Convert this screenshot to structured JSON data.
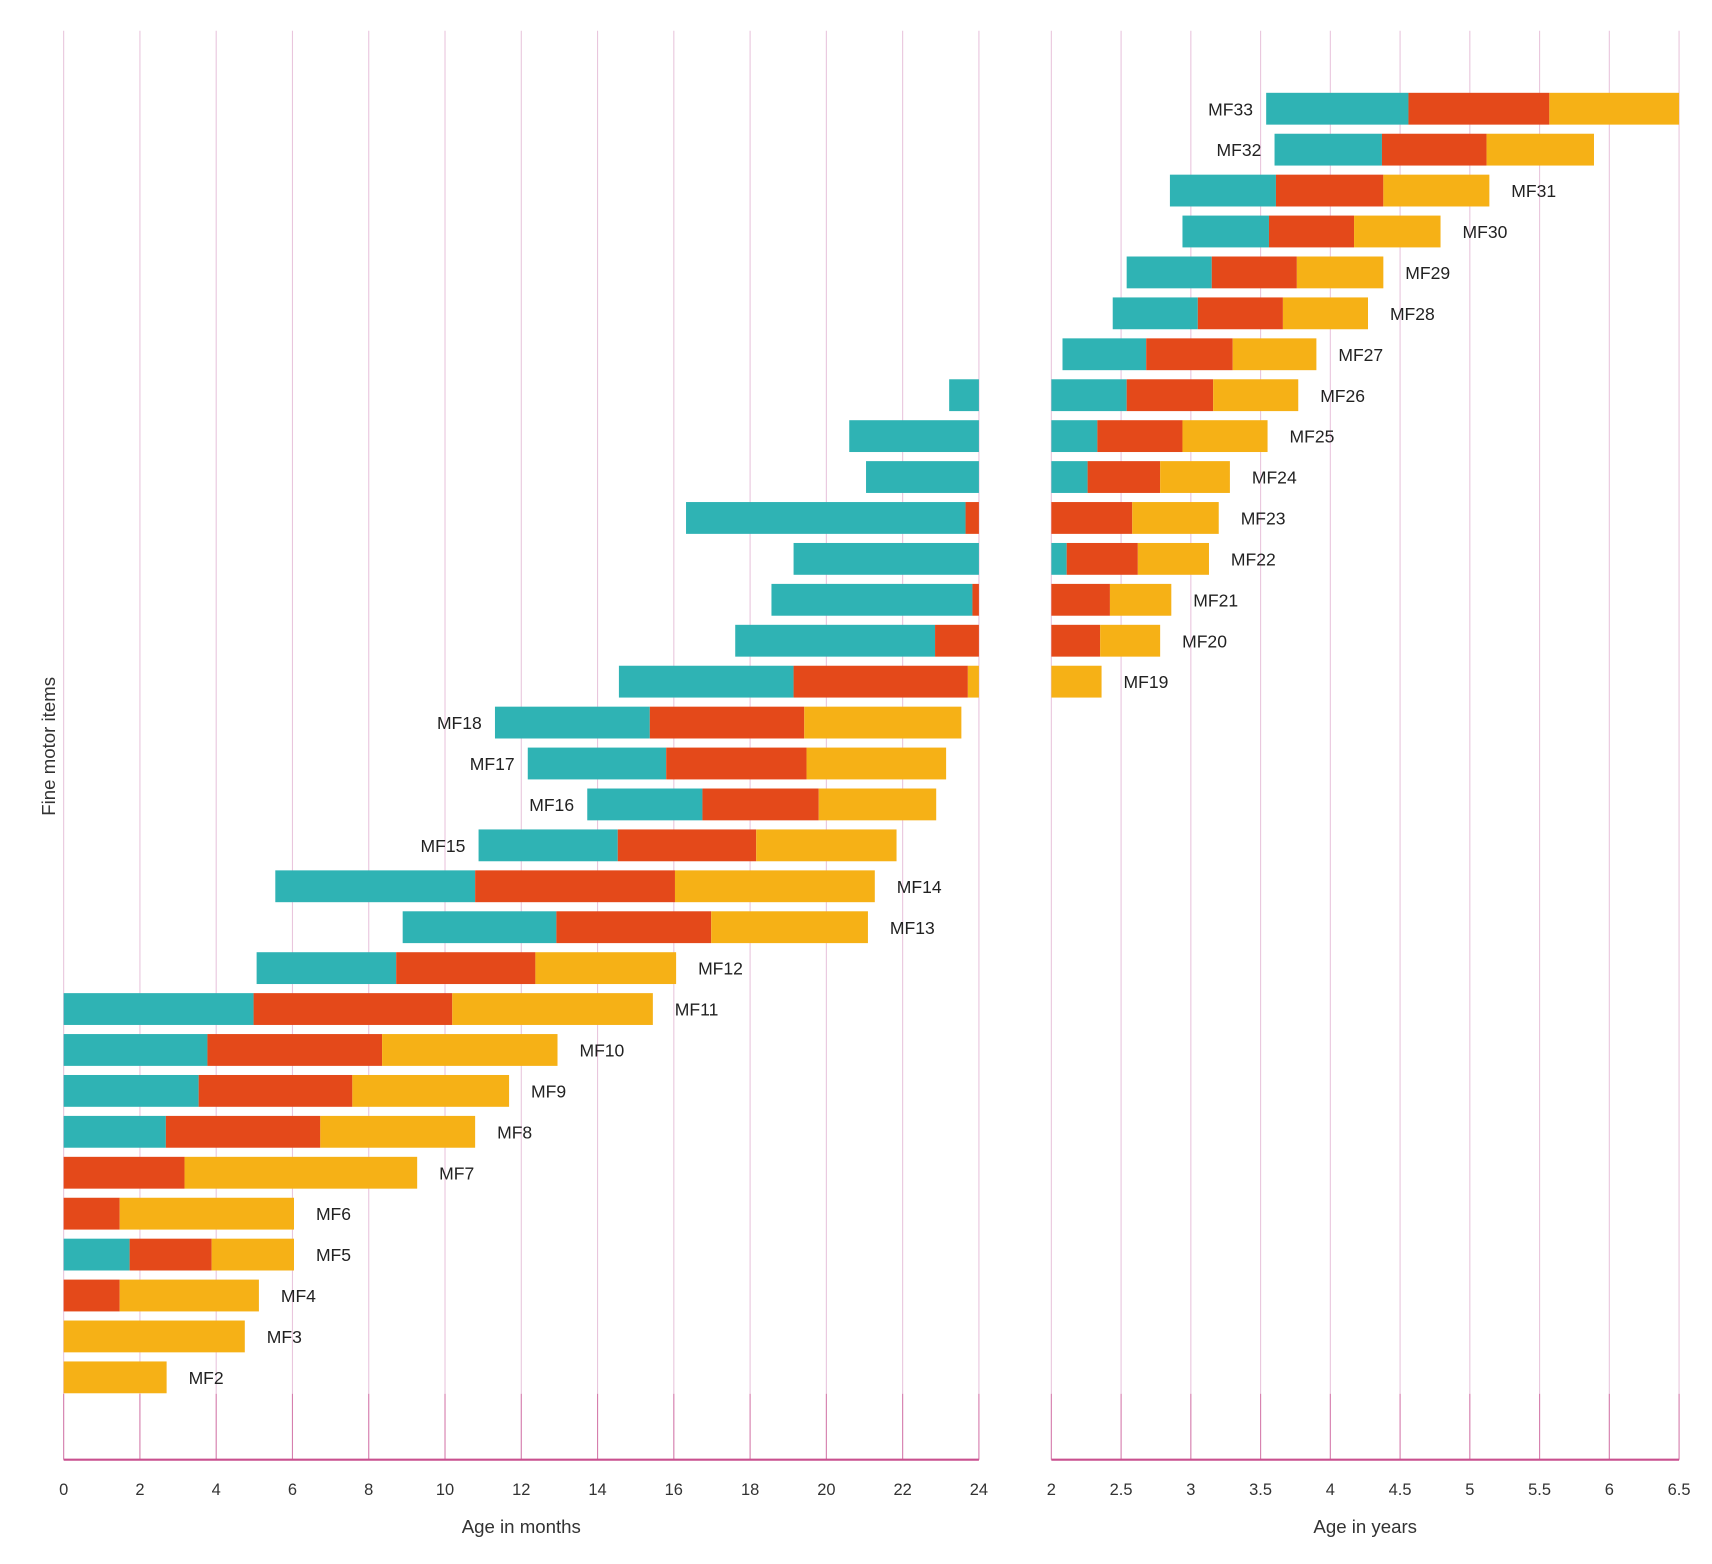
{
  "chart_data": {
    "type": "bar",
    "subtype": "horizontal-stacked-range",
    "ylabel": "Fine motor items",
    "legend": "none",
    "colors": {
      "phase1": "#2fb3b4",
      "phase2": "#e4491a",
      "phase3": "#f6b116",
      "grid": "#e9c6dd",
      "axis": "#c9508f"
    },
    "panels": [
      {
        "key": "months",
        "xlabel": "Age in months",
        "xlim": [
          0,
          24
        ],
        "ticks": [
          "0",
          "2",
          "4",
          "6",
          "8",
          "10",
          "12",
          "14",
          "16",
          "18",
          "20",
          "22",
          "24"
        ],
        "tick_values": [
          0,
          2,
          4,
          6,
          8,
          10,
          12,
          14,
          16,
          18,
          20,
          22,
          24
        ]
      },
      {
        "key": "years",
        "xlabel": "Age in years",
        "xlim": [
          2,
          6.5
        ],
        "ticks": [
          "2",
          "2.5",
          "3",
          "3.5",
          "4",
          "4.5",
          "5",
          "5.5",
          "6",
          "6.5"
        ],
        "tick_values": [
          2,
          2.5,
          3,
          3.5,
          4,
          4.5,
          5,
          5.5,
          6,
          6.5
        ]
      }
    ],
    "items": [
      {
        "name": "MF2",
        "months": {
          "phase3": [
            0,
            2.7
          ]
        }
      },
      {
        "name": "MF3",
        "months": {
          "phase3": [
            0,
            4.75
          ]
        }
      },
      {
        "name": "MF4",
        "months": {
          "phase2": [
            0,
            1.47
          ],
          "phase3": [
            1.47,
            5.12
          ]
        }
      },
      {
        "name": "MF5",
        "months": {
          "phase1": [
            0,
            1.73
          ],
          "phase2": [
            1.73,
            3.88
          ],
          "phase3": [
            3.88,
            6.04
          ]
        }
      },
      {
        "name": "MF6",
        "months": {
          "phase2": [
            0,
            1.47
          ],
          "phase3": [
            1.47,
            6.04
          ]
        }
      },
      {
        "name": "MF7",
        "months": {
          "phase2": [
            0,
            3.17
          ],
          "phase3": [
            3.17,
            9.27
          ]
        }
      },
      {
        "name": "MF8",
        "months": {
          "phase1": [
            0,
            2.68
          ],
          "phase2": [
            2.68,
            6.73
          ],
          "phase3": [
            6.73,
            10.79
          ]
        }
      },
      {
        "name": "MF9",
        "months": {
          "phase1": [
            0,
            3.54
          ],
          "phase2": [
            3.54,
            7.57
          ],
          "phase3": [
            7.57,
            11.68
          ]
        }
      },
      {
        "name": "MF10",
        "months": {
          "phase1": [
            0,
            3.77
          ],
          "phase2": [
            3.77,
            8.35
          ],
          "phase3": [
            8.35,
            12.95
          ]
        }
      },
      {
        "name": "MF11",
        "months": {
          "phase1": [
            0,
            4.98
          ],
          "phase2": [
            4.98,
            10.19
          ],
          "phase3": [
            10.19,
            15.45
          ]
        }
      },
      {
        "name": "MF12",
        "months": {
          "phase1": [
            5.06,
            8.72
          ],
          "phase2": [
            8.72,
            12.37
          ],
          "phase3": [
            12.37,
            16.06
          ]
        }
      },
      {
        "name": "MF13",
        "months": {
          "phase1": [
            8.89,
            12.92
          ],
          "phase2": [
            12.92,
            16.98
          ],
          "phase3": [
            16.98,
            21.09
          ]
        }
      },
      {
        "name": "MF14",
        "months": {
          "phase1": [
            5.55,
            10.79
          ],
          "phase2": [
            10.79,
            16.03
          ],
          "phase3": [
            16.03,
            21.27
          ]
        }
      },
      {
        "name": "MF15",
        "months": {
          "phase1": [
            10.88,
            14.53
          ],
          "phase2": [
            14.53,
            18.16
          ],
          "phase3": [
            18.16,
            21.84
          ]
        }
      },
      {
        "name": "MF16",
        "months": {
          "phase1": [
            13.73,
            16.75
          ],
          "phase2": [
            16.75,
            19.8
          ],
          "phase3": [
            19.8,
            22.88
          ]
        }
      },
      {
        "name": "MF17",
        "months": {
          "phase1": [
            12.17,
            15.8
          ],
          "phase2": [
            15.8,
            19.48
          ],
          "phase3": [
            19.48,
            23.14
          ]
        }
      },
      {
        "name": "MF18",
        "months": {
          "phase1": [
            11.31,
            15.37
          ],
          "phase2": [
            15.37,
            19.42
          ],
          "phase3": [
            19.42,
            23.54
          ]
        }
      },
      {
        "name": "MF19",
        "months": {
          "phase1": [
            14.56,
            19.14
          ],
          "phase2": [
            19.14,
            23.71
          ],
          "phase3": [
            23.71,
            24
          ]
        },
        "years": {
          "phase3": [
            2,
            2.36
          ]
        }
      },
      {
        "name": "MF20",
        "months": {
          "phase1": [
            17.61,
            22.85
          ],
          "phase2": [
            22.85,
            24
          ]
        },
        "years": {
          "phase2": [
            2,
            2.35
          ],
          "phase3": [
            2.35,
            2.78
          ]
        }
      },
      {
        "name": "MF21",
        "months": {
          "phase1": [
            18.56,
            23.83
          ],
          "phase2": [
            23.83,
            24
          ]
        },
        "years": {
          "phase2": [
            2,
            2.42
          ],
          "phase3": [
            2.42,
            2.86
          ]
        }
      },
      {
        "name": "MF22",
        "months": {
          "phase1": [
            19.14,
            24
          ]
        },
        "years": {
          "phase1": [
            2,
            2.11
          ],
          "phase2": [
            2.11,
            2.62
          ],
          "phase3": [
            2.62,
            3.13
          ]
        }
      },
      {
        "name": "MF23",
        "months": {
          "phase1": [
            16.32,
            23.65
          ],
          "phase2": [
            23.65,
            24
          ]
        },
        "years": {
          "phase2": [
            2,
            2.58
          ],
          "phase3": [
            2.58,
            3.2
          ]
        }
      },
      {
        "name": "MF24",
        "months": {
          "phase1": [
            21.04,
            24
          ]
        },
        "years": {
          "phase1": [
            2,
            2.26
          ],
          "phase2": [
            2.26,
            2.78
          ],
          "phase3": [
            2.78,
            3.28
          ]
        }
      },
      {
        "name": "MF25",
        "months": {
          "phase1": [
            20.6,
            24
          ]
        },
        "years": {
          "phase1": [
            2,
            2.33
          ],
          "phase2": [
            2.33,
            2.94
          ],
          "phase3": [
            2.94,
            3.55
          ]
        }
      },
      {
        "name": "MF26",
        "months": {
          "phase1": [
            23.22,
            24
          ]
        },
        "years": {
          "phase1": [
            2,
            2.54
          ],
          "phase2": [
            2.54,
            3.16
          ],
          "phase3": [
            3.16,
            3.77
          ]
        }
      },
      {
        "name": "MF27",
        "years": {
          "phase1": [
            2.08,
            2.68
          ],
          "phase2": [
            2.68,
            3.3
          ],
          "phase3": [
            3.3,
            3.9
          ]
        }
      },
      {
        "name": "MF28",
        "years": {
          "phase1": [
            2.44,
            3.05
          ],
          "phase2": [
            3.05,
            3.66
          ],
          "phase3": [
            3.66,
            4.27
          ]
        }
      },
      {
        "name": "MF29",
        "years": {
          "phase1": [
            2.54,
            3.15
          ],
          "phase2": [
            3.15,
            3.76
          ],
          "phase3": [
            3.76,
            4.38
          ]
        }
      },
      {
        "name": "MF30",
        "years": {
          "phase1": [
            2.94,
            3.56
          ],
          "phase2": [
            3.56,
            4.17
          ],
          "phase3": [
            4.17,
            4.79
          ]
        }
      },
      {
        "name": "MF31",
        "years": {
          "phase1": [
            2.85,
            3.61
          ],
          "phase2": [
            3.61,
            4.38
          ],
          "phase3": [
            4.38,
            5.14
          ]
        }
      },
      {
        "name": "MF32",
        "years": {
          "phase1": [
            3.6,
            4.37
          ],
          "phase2": [
            4.37,
            5.12
          ],
          "phase3": [
            5.12,
            5.89
          ]
        }
      },
      {
        "name": "MF33",
        "years": {
          "phase1": [
            3.54,
            4.56
          ],
          "phase2": [
            4.56,
            5.57
          ],
          "phase3": [
            5.57,
            6.5
          ]
        }
      }
    ]
  }
}
